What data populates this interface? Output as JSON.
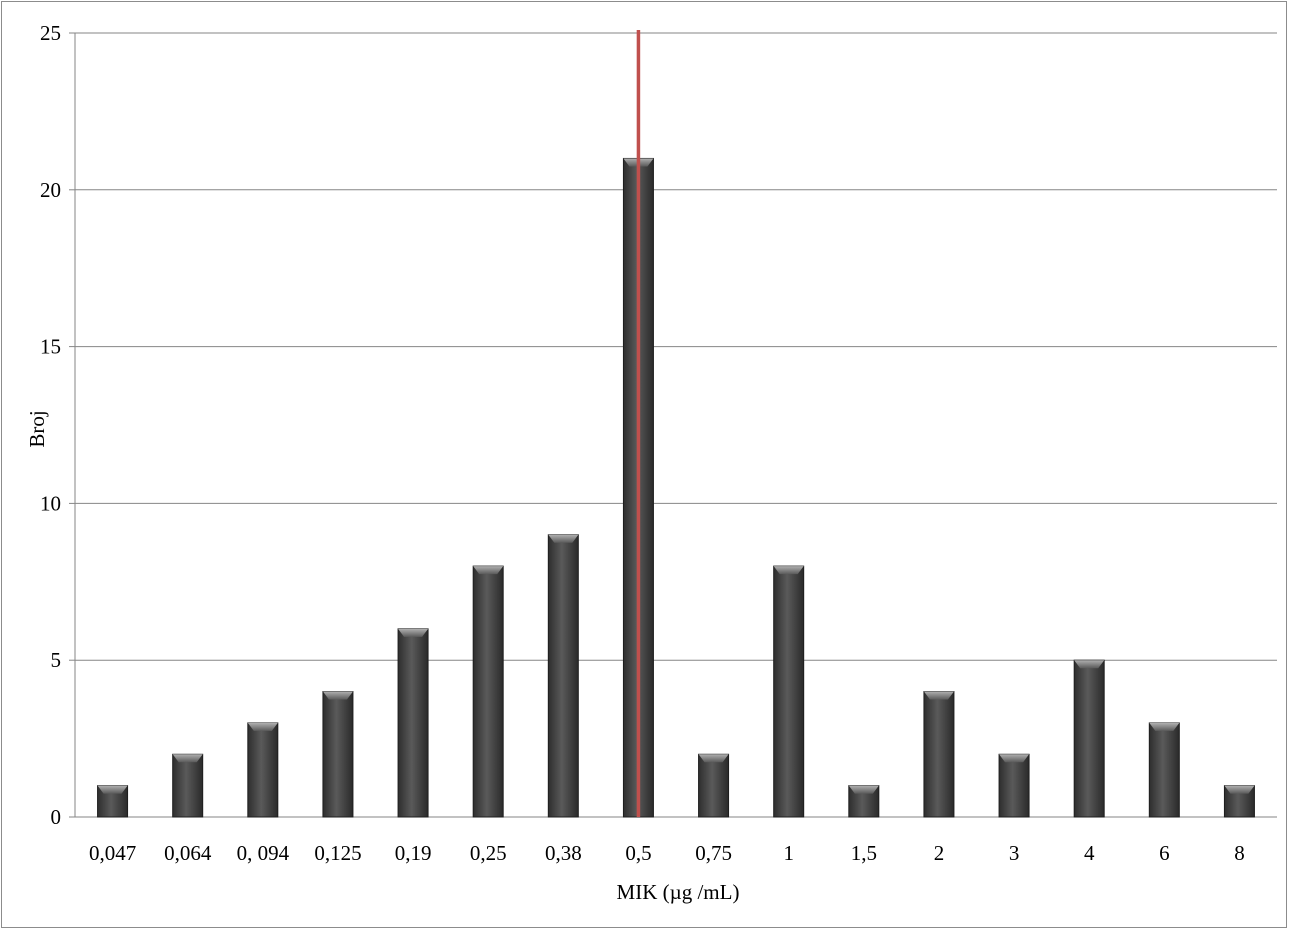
{
  "chart_data": {
    "type": "bar",
    "categories": [
      "0,047",
      "0,064",
      "0, 094",
      "0,125",
      "0,19",
      "0,25",
      "0,38",
      "0,5",
      "0,75",
      "1",
      "1,5",
      "2",
      "3",
      "4",
      "6",
      "8"
    ],
    "values": [
      1,
      2,
      3,
      4,
      6,
      8,
      9,
      21,
      2,
      8,
      1,
      4,
      2,
      5,
      3,
      1
    ],
    "xlabel": "MIK (µg /mL)",
    "ylabel": "Broj",
    "ylim": [
      0,
      25
    ],
    "yticks": [
      0,
      5,
      10,
      15,
      20,
      25
    ],
    "grid": true,
    "legend": "none",
    "reference_line": {
      "category": "0,5",
      "orientation": "vertical",
      "color": "#c0504d"
    },
    "colors": {
      "bar": "#4a4a4a",
      "bar_highlight": "#8a8a8a",
      "grid": "#868686",
      "reference_line": "#c0504d"
    }
  }
}
